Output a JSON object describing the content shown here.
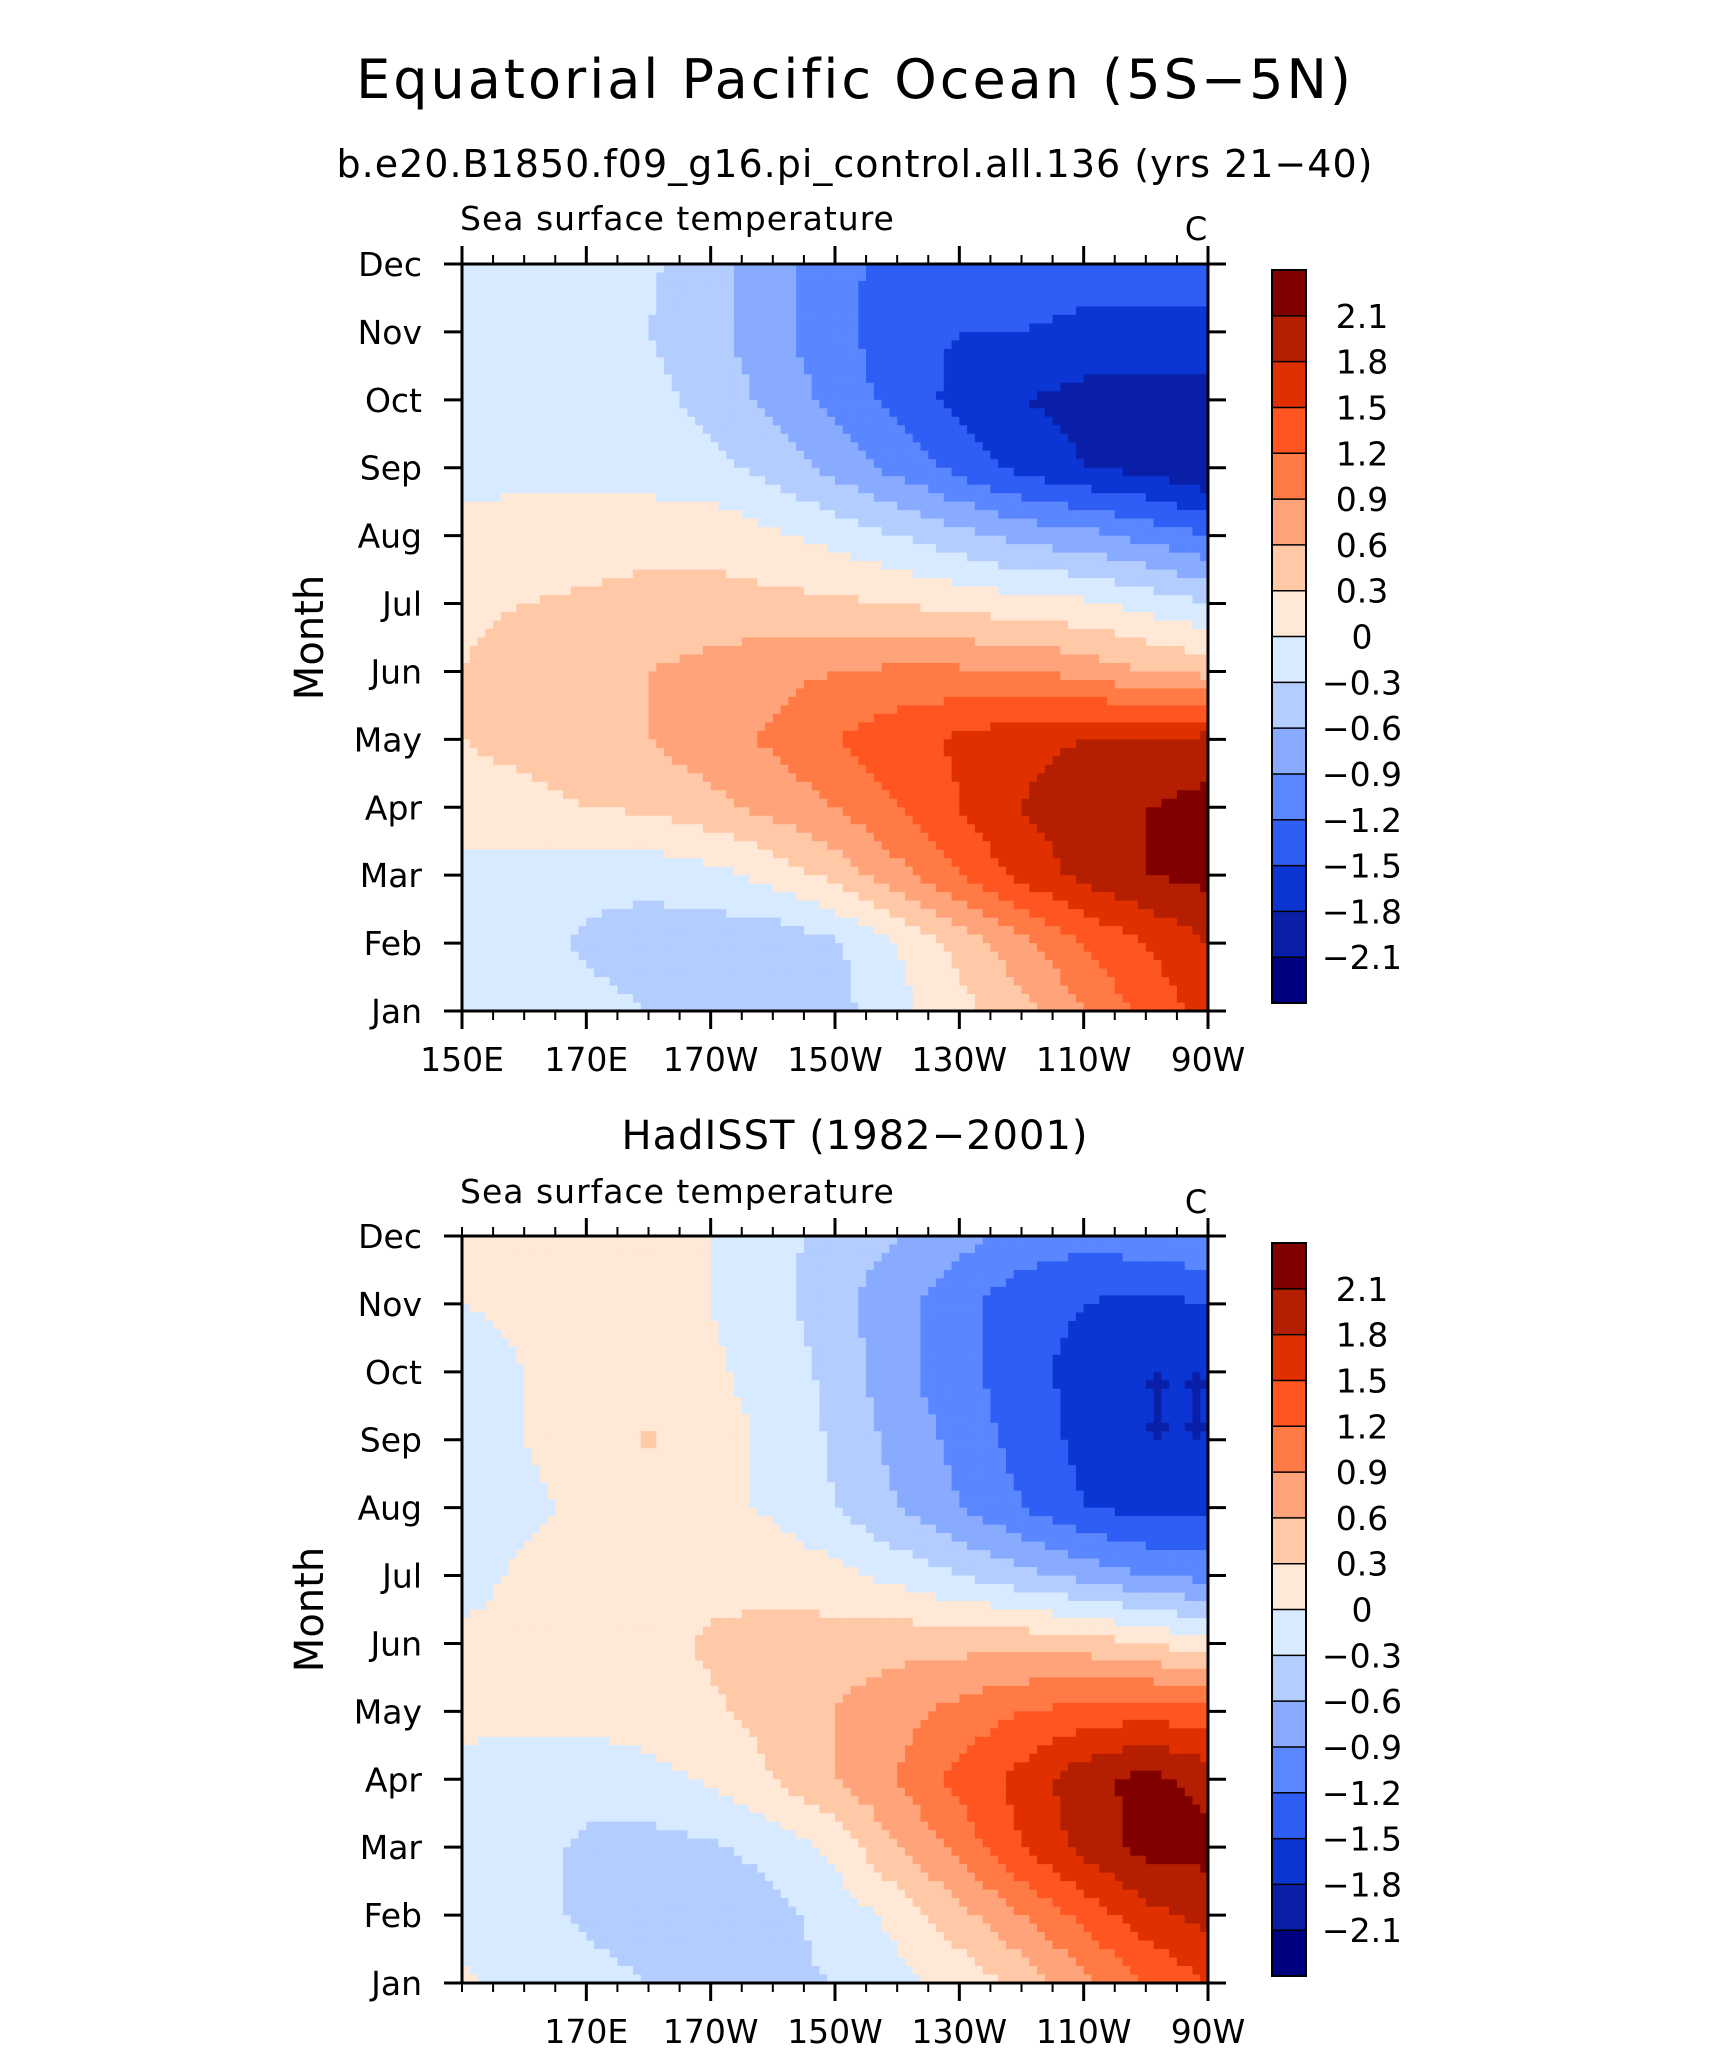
{
  "title": "Equatorial Pacific Ocean (5S−5N)",
  "subtitle": "b.e20.B1850.f09_g16.pi_control.all.136 (yrs 21−40)",
  "chart_data": [
    {
      "type": "heatmap",
      "title": "",
      "left_string": "Sea surface temperature",
      "right_string": "C",
      "ylabel": "Month",
      "xlabel": "",
      "xlim": [
        150,
        270
      ],
      "x_tick_values": [
        150,
        170,
        190,
        210,
        230,
        250,
        270
      ],
      "x_tick_labels": [
        "150E",
        "170E",
        "170W",
        "150W",
        "130W",
        "110W",
        "90W"
      ],
      "y_tick_labels": [
        "Jan",
        "Feb",
        "Mar",
        "Apr",
        "May",
        "Jun",
        "Jul",
        "Aug",
        "Sep",
        "Oct",
        "Nov",
        "Dec"
      ],
      "x": [
        150,
        160,
        170,
        180,
        190,
        200,
        210,
        220,
        230,
        240,
        250,
        260,
        270
      ],
      "y": [
        "Jan",
        "Feb",
        "Mar",
        "Apr",
        "May",
        "Jun",
        "Jul",
        "Aug",
        "Sep",
        "Oct",
        "Nov",
        "Dec"
      ],
      "z": [
        [
          -0.1,
          -0.2,
          -0.2,
          -0.3,
          -0.4,
          -0.6,
          -0.4,
          -0.1,
          0.2,
          0.5,
          0.9,
          1.3,
          1.6
        ],
        [
          -0.1,
          -0.2,
          -0.35,
          -0.45,
          -0.5,
          -0.5,
          -0.35,
          0.0,
          0.4,
          0.8,
          1.2,
          1.5,
          1.8
        ],
        [
          -0.1,
          -0.15,
          -0.2,
          -0.2,
          -0.1,
          0.1,
          0.4,
          0.8,
          1.2,
          1.6,
          1.9,
          2.1,
          2.2
        ],
        [
          0.15,
          0.2,
          0.3,
          0.35,
          0.5,
          0.7,
          0.9,
          1.2,
          1.5,
          1.8,
          2.0,
          2.1,
          2.2
        ],
        [
          0.3,
          0.4,
          0.5,
          0.6,
          0.8,
          0.95,
          1.2,
          1.4,
          1.55,
          1.7,
          1.8,
          1.8,
          1.9
        ],
        [
          0.3,
          0.4,
          0.5,
          0.6,
          0.7,
          0.8,
          0.9,
          0.95,
          0.95,
          0.9,
          0.8,
          0.6,
          0.5
        ],
        [
          0.25,
          0.3,
          0.35,
          0.4,
          0.4,
          0.4,
          0.35,
          0.3,
          0.2,
          0.1,
          0.05,
          -0.1,
          -0.3
        ],
        [
          0.1,
          0.15,
          0.15,
          0.2,
          0.2,
          0.05,
          -0.1,
          -0.3,
          -0.5,
          -0.7,
          -0.8,
          -1.0,
          -1.2
        ],
        [
          -0.1,
          -0.1,
          -0.1,
          -0.15,
          -0.2,
          -0.4,
          -0.7,
          -1.0,
          -1.3,
          -1.6,
          -1.8,
          -1.9,
          -2.1
        ],
        [
          -0.1,
          -0.1,
          -0.1,
          -0.2,
          -0.4,
          -0.7,
          -1.0,
          -1.3,
          -1.6,
          -1.8,
          -1.9,
          -1.9,
          -1.9
        ],
        [
          -0.1,
          -0.1,
          -0.15,
          -0.3,
          -0.5,
          -0.8,
          -1.1,
          -1.4,
          -1.5,
          -1.5,
          -1.6,
          -1.6,
          -1.6
        ],
        [
          -0.1,
          -0.1,
          -0.15,
          -0.25,
          -0.5,
          -0.8,
          -1.1,
          -1.3,
          -1.3,
          -1.3,
          -1.3,
          -1.3,
          -1.3
        ]
      ]
    },
    {
      "type": "heatmap",
      "title": "HadISST (1982−2001)",
      "left_string": "Sea surface temperature",
      "right_string": "C",
      "ylabel": "Month",
      "xlabel": "",
      "xlim": [
        150,
        270
      ],
      "x_tick_values": [
        170,
        190,
        210,
        230,
        250,
        270
      ],
      "x_tick_labels": [
        "170E",
        "170W",
        "150W",
        "130W",
        "110W",
        "90W"
      ],
      "y_tick_labels": [
        "Jan",
        "Feb",
        "Mar",
        "Apr",
        "May",
        "Jun",
        "Jul",
        "Aug",
        "Sep",
        "Oct",
        "Nov",
        "Dec"
      ],
      "x": [
        150,
        160,
        170,
        180,
        190,
        200,
        210,
        220,
        230,
        240,
        250,
        260,
        270
      ],
      "y": [
        "Jan",
        "Feb",
        "Mar",
        "Apr",
        "May",
        "Jun",
        "Jul",
        "Aug",
        "Sep",
        "Oct",
        "Nov",
        "Dec"
      ],
      "z": [
        [
          0.05,
          -0.1,
          -0.2,
          -0.3,
          -0.4,
          -0.35,
          -0.3,
          -0.1,
          0.1,
          0.4,
          0.8,
          1.2,
          1.5
        ],
        [
          -0.1,
          -0.2,
          -0.35,
          -0.45,
          -0.5,
          -0.4,
          -0.2,
          0.1,
          0.5,
          0.9,
          1.3,
          1.7,
          1.9
        ],
        [
          -0.1,
          -0.2,
          -0.35,
          -0.4,
          -0.35,
          -0.2,
          0.1,
          0.6,
          1.0,
          1.5,
          1.9,
          2.2,
          2.2
        ],
        [
          -0.05,
          -0.1,
          -0.2,
          -0.1,
          0.05,
          0.3,
          0.6,
          0.9,
          1.3,
          1.6,
          2.0,
          2.2,
          2.0
        ],
        [
          0.05,
          0.05,
          0.1,
          0.15,
          0.25,
          0.4,
          0.6,
          0.8,
          1.0,
          1.2,
          1.3,
          1.4,
          1.3
        ],
        [
          0.05,
          0.1,
          0.15,
          0.2,
          0.35,
          0.4,
          0.45,
          0.5,
          0.5,
          0.5,
          0.45,
          0.3,
          0.1
        ],
        [
          -0.1,
          0.05,
          0.1,
          0.15,
          0.2,
          0.2,
          0.1,
          -0.1,
          -0.3,
          -0.5,
          -0.7,
          -0.9,
          -1.0
        ],
        [
          -0.2,
          -0.05,
          0.05,
          0.1,
          0.1,
          -0.05,
          -0.3,
          -0.6,
          -0.9,
          -1.2,
          -1.5,
          -1.6,
          -1.6
        ],
        [
          -0.2,
          0.0,
          0.1,
          0.35,
          0.1,
          -0.05,
          -0.35,
          -0.7,
          -1.0,
          -1.3,
          -1.6,
          -1.8,
          -1.8
        ],
        [
          -0.1,
          0.0,
          0.1,
          0.1,
          0.05,
          -0.1,
          -0.4,
          -0.8,
          -1.1,
          -1.4,
          -1.6,
          -1.8,
          -1.8
        ],
        [
          0.0,
          0.05,
          0.1,
          0.1,
          0.0,
          -0.2,
          -0.5,
          -0.8,
          -1.1,
          -1.4,
          -1.5,
          -1.6,
          -1.5
        ],
        [
          0.05,
          0.1,
          0.1,
          0.1,
          0.0,
          -0.2,
          -0.4,
          -0.6,
          -0.8,
          -1.0,
          -1.1,
          -1.0,
          -0.9
        ]
      ]
    }
  ],
  "colorbar": {
    "labels": [
      "2.1",
      "1.8",
      "1.5",
      "1.2",
      "0.9",
      "0.6",
      "0.3",
      "0",
      "−0.3",
      "−0.6",
      "−0.9",
      "−1.2",
      "−1.5",
      "−1.8",
      "−2.1"
    ],
    "levels": [
      2.1,
      1.8,
      1.5,
      1.2,
      0.9,
      0.6,
      0.3,
      0,
      -0.3,
      -0.6,
      -0.9,
      -1.2,
      -1.5,
      -1.8,
      -2.1
    ],
    "colors_top_to_bottom": [
      "#800000",
      "#b31f00",
      "#e03000",
      "#ff5520",
      "#ff7a45",
      "#ffa47a",
      "#ffc9a8",
      "#ffe8d6",
      "#d8eaff",
      "#b4cdff",
      "#88aaff",
      "#5a86ff",
      "#2f5ef5",
      "#0c36d4",
      "#0a1fa8",
      "#000080"
    ]
  }
}
